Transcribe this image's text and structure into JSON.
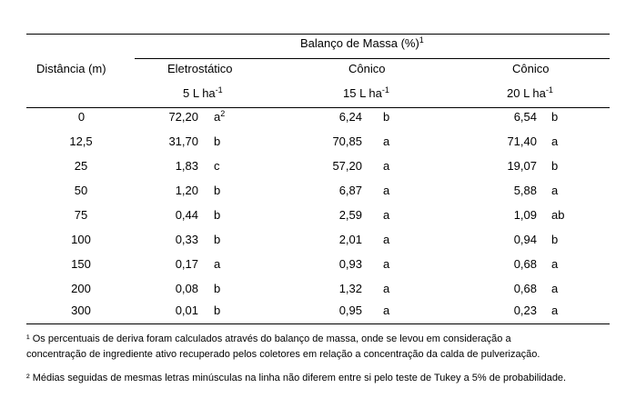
{
  "header": {
    "group_title": "Balanço de Massa (%)",
    "group_title_sup": "1",
    "row_header": "Distância (m)",
    "columns": [
      {
        "name": "Eletrostático",
        "rate": "5 L ha",
        "rate_sup": "-1"
      },
      {
        "name": "Cônico",
        "rate": "15 L ha",
        "rate_sup": "-1"
      },
      {
        "name": "Cônico",
        "rate": "20 L ha",
        "rate_sup": "-1"
      }
    ]
  },
  "rows": [
    {
      "dist": "0",
      "c1": "72,20",
      "l1": "a",
      "l1_sup": "2",
      "c2": "6,24",
      "l2": "b",
      "c3": "6,54",
      "l3": "b"
    },
    {
      "dist": "12,5",
      "c1": "31,70",
      "l1": "b",
      "l1_sup": "",
      "c2": "70,85",
      "l2": "a",
      "c3": "71,40",
      "l3": "a"
    },
    {
      "dist": "25",
      "c1": "1,83",
      "l1": "c",
      "l1_sup": "",
      "c2": "57,20",
      "l2": "a",
      "c3": "19,07",
      "l3": "b"
    },
    {
      "dist": "50",
      "c1": "1,20",
      "l1": "b",
      "l1_sup": "",
      "c2": "6,87",
      "l2": "a",
      "c3": "5,88",
      "l3": "a"
    },
    {
      "dist": "75",
      "c1": "0,44",
      "l1": "b",
      "l1_sup": "",
      "c2": "2,59",
      "l2": "a",
      "c3": "1,09",
      "l3": "ab"
    },
    {
      "dist": "100",
      "c1": "0,33",
      "l1": "b",
      "l1_sup": "",
      "c2": "2,01",
      "l2": "a",
      "c3": "0,94",
      "l3": "b"
    },
    {
      "dist": "150",
      "c1": "0,17",
      "l1": "a",
      "l1_sup": "",
      "c2": "0,93",
      "l2": "a",
      "c3": "0,68",
      "l3": "a"
    },
    {
      "dist": "200",
      "c1": "0,08",
      "l1": "b",
      "l1_sup": "",
      "c2": "1,32",
      "l2": "a",
      "c3": "0,68",
      "l3": "a"
    },
    {
      "dist": "300",
      "c1": "0,01",
      "l1": "b",
      "l1_sup": "",
      "c2": "0,95",
      "l2": "a",
      "c3": "0,23",
      "l3": "a"
    }
  ],
  "footnotes": {
    "note1_line1": "¹ Os percentuais de deriva foram calculados através do balanço de massa, onde se levou em consideração a",
    "note1_line2": "concentração de ingrediente ativo recuperado pelos coletores em relação a concentração da calda de pulverização.",
    "note2": "² Médias seguidas de mesmas letras minúsculas na linha não diferem entre si pelo teste de Tukey a 5% de probabilidade."
  }
}
